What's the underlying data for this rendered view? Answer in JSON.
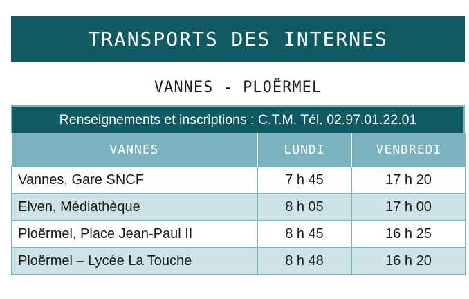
{
  "header": {
    "title": "TRANSPORTS DES INTERNES"
  },
  "route": {
    "label": "VANNES - PLOËRMEL"
  },
  "info": {
    "text": "Renseignements et inscriptions : C.T.M. Tél. 02.97.01.22.01"
  },
  "table": {
    "columns": [
      "VANNES",
      "LUNDI",
      "VENDREDI"
    ],
    "rows": [
      {
        "stop": "Vannes, Gare SNCF",
        "lundi": "7 h 45",
        "vendredi": "17 h 20"
      },
      {
        "stop": "Elven, Médiathèque",
        "lundi": "8 h 05",
        "vendredi": "17 h 00"
      },
      {
        "stop": "Ploërmel, Place Jean-Paul II",
        "lundi": "8 h 45",
        "vendredi": "16 h 25"
      },
      {
        "stop": "Ploërmel – Lycée La Touche",
        "lundi": "8 h 48",
        "vendredi": "16 h 20"
      }
    ]
  },
  "colors": {
    "dark_teal": "#0f5a63",
    "light_teal": "#7ab3bd",
    "row_alt": "#cfe3e7"
  }
}
